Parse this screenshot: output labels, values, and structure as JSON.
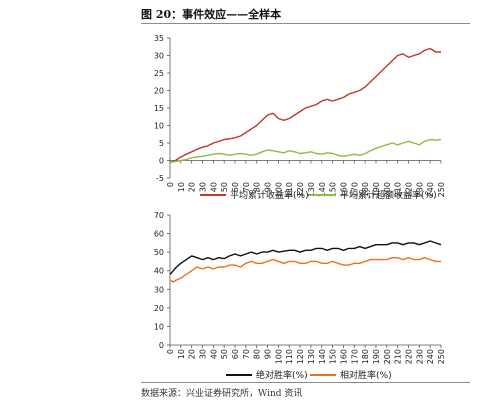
{
  "figure": {
    "title": "图 20：事件效应——全样本",
    "source": "数据来源：兴业证券研究所，Wind 资讯"
  },
  "colors": {
    "red": "#c0392b",
    "green": "#8fbc45",
    "black": "#111111",
    "orange": "#e8721c",
    "axis": "#555555"
  },
  "chart_data": [
    {
      "type": "line",
      "x_ticks": [
        0,
        10,
        20,
        30,
        40,
        50,
        60,
        70,
        80,
        90,
        100,
        110,
        120,
        130,
        140,
        150,
        160,
        170,
        180,
        190,
        200,
        210,
        220,
        230,
        240,
        250
      ],
      "y_ticks": [
        -5,
        0,
        5,
        10,
        15,
        20,
        25,
        30,
        35
      ],
      "ylim": [
        -5,
        35
      ],
      "xlim": [
        0,
        250
      ],
      "legend_position": "bottom",
      "series": [
        {
          "name": "平均累计收益率(%)",
          "color": "#c0392b",
          "points": [
            [
              0,
              -0.5
            ],
            [
              5,
              0
            ],
            [
              10,
              1
            ],
            [
              15,
              1.8
            ],
            [
              20,
              2.5
            ],
            [
              25,
              3.2
            ],
            [
              30,
              3.8
            ],
            [
              35,
              4.2
            ],
            [
              40,
              5
            ],
            [
              45,
              5.5
            ],
            [
              50,
              6
            ],
            [
              55,
              6.2
            ],
            [
              60,
              6.5
            ],
            [
              65,
              7
            ],
            [
              70,
              8
            ],
            [
              75,
              9
            ],
            [
              80,
              10
            ],
            [
              85,
              11.5
            ],
            [
              90,
              13
            ],
            [
              95,
              13.5
            ],
            [
              100,
              12
            ],
            [
              105,
              11.5
            ],
            [
              110,
              12
            ],
            [
              115,
              13
            ],
            [
              120,
              14
            ],
            [
              125,
              15
            ],
            [
              130,
              15.5
            ],
            [
              135,
              16
            ],
            [
              140,
              17
            ],
            [
              145,
              17.5
            ],
            [
              150,
              17
            ],
            [
              155,
              17.5
            ],
            [
              160,
              18
            ],
            [
              165,
              19
            ],
            [
              170,
              19.5
            ],
            [
              175,
              20
            ],
            [
              180,
              21
            ],
            [
              185,
              22.5
            ],
            [
              190,
              24
            ],
            [
              195,
              25.5
            ],
            [
              200,
              27
            ],
            [
              205,
              28.5
            ],
            [
              210,
              30
            ],
            [
              215,
              30.5
            ],
            [
              220,
              29.5
            ],
            [
              225,
              30
            ],
            [
              230,
              30.5
            ],
            [
              235,
              31.5
            ],
            [
              240,
              32
            ],
            [
              245,
              31
            ],
            [
              250,
              31
            ]
          ]
        },
        {
          "name": "平均累计超额收益率(%)",
          "color": "#8fbc45",
          "points": [
            [
              0,
              -0.5
            ],
            [
              5,
              -0.3
            ],
            [
              10,
              0
            ],
            [
              15,
              0.3
            ],
            [
              20,
              0.8
            ],
            [
              25,
              1
            ],
            [
              30,
              1.2
            ],
            [
              35,
              1.5
            ],
            [
              40,
              1.8
            ],
            [
              45,
              2
            ],
            [
              50,
              1.8
            ],
            [
              55,
              1.5
            ],
            [
              60,
              1.8
            ],
            [
              65,
              2
            ],
            [
              70,
              1.8
            ],
            [
              75,
              1.5
            ],
            [
              80,
              1.8
            ],
            [
              85,
              2.5
            ],
            [
              90,
              3
            ],
            [
              95,
              2.8
            ],
            [
              100,
              2.5
            ],
            [
              105,
              2.2
            ],
            [
              110,
              2.8
            ],
            [
              115,
              2.5
            ],
            [
              120,
              2
            ],
            [
              125,
              2.2
            ],
            [
              130,
              2.5
            ],
            [
              135,
              2
            ],
            [
              140,
              1.8
            ],
            [
              145,
              2.2
            ],
            [
              150,
              2
            ],
            [
              155,
              1.5
            ],
            [
              160,
              1.2
            ],
            [
              165,
              1.5
            ],
            [
              170,
              1.8
            ],
            [
              175,
              1.5
            ],
            [
              180,
              2
            ],
            [
              185,
              2.8
            ],
            [
              190,
              3.5
            ],
            [
              195,
              4
            ],
            [
              200,
              4.5
            ],
            [
              205,
              5
            ],
            [
              210,
              4.5
            ],
            [
              215,
              5
            ],
            [
              220,
              5.5
            ],
            [
              225,
              5
            ],
            [
              230,
              4.5
            ],
            [
              235,
              5.5
            ],
            [
              240,
              6
            ],
            [
              245,
              5.8
            ],
            [
              250,
              6
            ]
          ]
        }
      ]
    },
    {
      "type": "line",
      "x_ticks": [
        0,
        10,
        20,
        30,
        40,
        50,
        60,
        70,
        80,
        90,
        100,
        110,
        120,
        130,
        140,
        150,
        160,
        170,
        180,
        190,
        200,
        210,
        220,
        230,
        240,
        250
      ],
      "y_ticks": [
        0,
        10,
        20,
        30,
        40,
        50,
        60,
        70
      ],
      "ylim": [
        0,
        70
      ],
      "xlim": [
        0,
        250
      ],
      "legend_position": "bottom",
      "series": [
        {
          "name": "绝对胜率(%)",
          "color": "#111111",
          "points": [
            [
              0,
              38
            ],
            [
              3,
              40
            ],
            [
              6,
              42
            ],
            [
              10,
              44
            ],
            [
              15,
              46
            ],
            [
              20,
              48
            ],
            [
              25,
              47
            ],
            [
              30,
              46
            ],
            [
              35,
              47
            ],
            [
              40,
              46
            ],
            [
              45,
              47
            ],
            [
              50,
              46.5
            ],
            [
              55,
              48
            ],
            [
              60,
              49
            ],
            [
              65,
              48
            ],
            [
              70,
              49
            ],
            [
              75,
              50
            ],
            [
              80,
              49
            ],
            [
              85,
              50
            ],
            [
              90,
              50
            ],
            [
              95,
              51
            ],
            [
              100,
              50
            ],
            [
              105,
              50.5
            ],
            [
              110,
              51
            ],
            [
              115,
              51
            ],
            [
              120,
              50
            ],
            [
              125,
              51
            ],
            [
              130,
              51
            ],
            [
              135,
              52
            ],
            [
              140,
              52
            ],
            [
              145,
              51
            ],
            [
              150,
              52
            ],
            [
              155,
              52
            ],
            [
              160,
              51
            ],
            [
              165,
              52
            ],
            [
              170,
              52
            ],
            [
              175,
              53
            ],
            [
              180,
              52
            ],
            [
              185,
              53
            ],
            [
              190,
              54
            ],
            [
              195,
              54
            ],
            [
              200,
              54
            ],
            [
              205,
              55
            ],
            [
              210,
              55
            ],
            [
              215,
              54
            ],
            [
              220,
              55
            ],
            [
              225,
              55
            ],
            [
              230,
              54
            ],
            [
              235,
              55
            ],
            [
              240,
              56
            ],
            [
              245,
              55
            ],
            [
              250,
              54
            ]
          ]
        },
        {
          "name": "相对胜率(%)",
          "color": "#e8721c",
          "points": [
            [
              0,
              35
            ],
            [
              3,
              34
            ],
            [
              6,
              35
            ],
            [
              10,
              36
            ],
            [
              15,
              38
            ],
            [
              20,
              40
            ],
            [
              25,
              42
            ],
            [
              30,
              41
            ],
            [
              35,
              42
            ],
            [
              40,
              41
            ],
            [
              45,
              42
            ],
            [
              50,
              42
            ],
            [
              55,
              43
            ],
            [
              60,
              43
            ],
            [
              65,
              42
            ],
            [
              70,
              44
            ],
            [
              75,
              45
            ],
            [
              80,
              44
            ],
            [
              85,
              44
            ],
            [
              90,
              45
            ],
            [
              95,
              46
            ],
            [
              100,
              45
            ],
            [
              105,
              44
            ],
            [
              110,
              45
            ],
            [
              115,
              45
            ],
            [
              120,
              44
            ],
            [
              125,
              44
            ],
            [
              130,
              45
            ],
            [
              135,
              45
            ],
            [
              140,
              44
            ],
            [
              145,
              44
            ],
            [
              150,
              45
            ],
            [
              155,
              44
            ],
            [
              160,
              43
            ],
            [
              165,
              43
            ],
            [
              170,
              44
            ],
            [
              175,
              44
            ],
            [
              180,
              45
            ],
            [
              185,
              46
            ],
            [
              190,
              46
            ],
            [
              195,
              46
            ],
            [
              200,
              46
            ],
            [
              205,
              47
            ],
            [
              210,
              47
            ],
            [
              215,
              46
            ],
            [
              220,
              47
            ],
            [
              225,
              46
            ],
            [
              230,
              46
            ],
            [
              235,
              47
            ],
            [
              240,
              46
            ],
            [
              245,
              45
            ],
            [
              250,
              45
            ]
          ]
        }
      ]
    }
  ]
}
